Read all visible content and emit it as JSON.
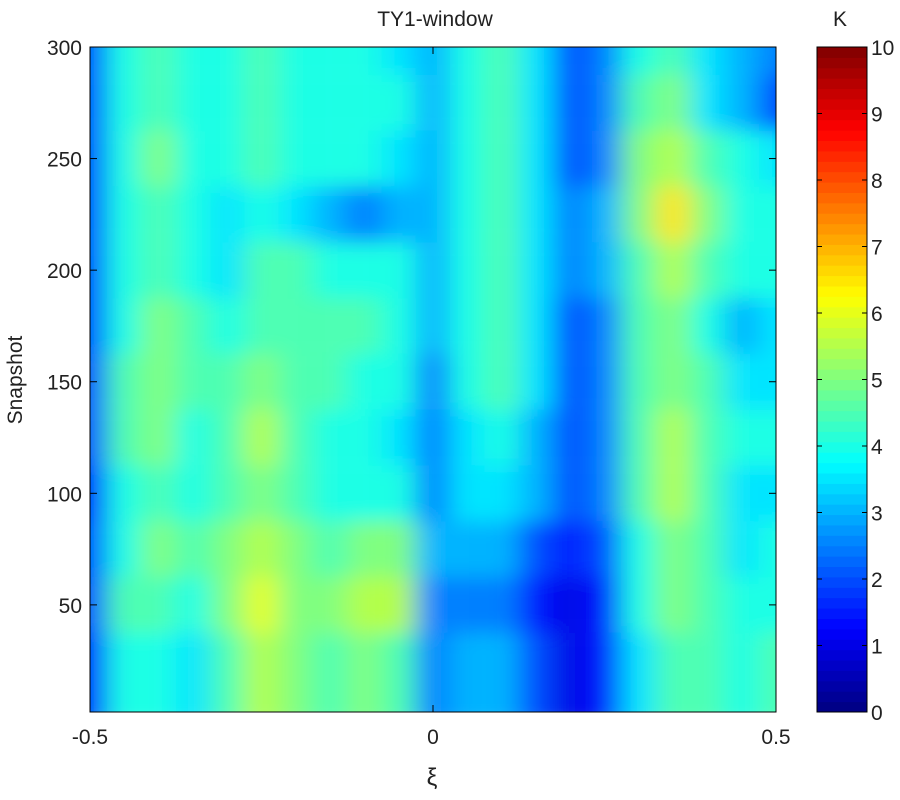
{
  "chart_data": {
    "type": "heatmap",
    "title": "TY1-window",
    "xlabel": "ξ",
    "ylabel": "Snapshot",
    "xlim": [
      -0.5,
      0.5
    ],
    "ylim": [
      2,
      300
    ],
    "xticks": [
      -0.5,
      0,
      0.5
    ],
    "xtick_labels": [
      "-0.5",
      "0",
      "0.5"
    ],
    "yticks": [
      50,
      100,
      150,
      200,
      250,
      300
    ],
    "ytick_labels": [
      "50",
      "100",
      "150",
      "200",
      "250",
      "300"
    ],
    "colorbar": {
      "label": "K",
      "range": [
        0,
        10
      ],
      "ticks": [
        0,
        1,
        2,
        3,
        4,
        5,
        6,
        7,
        8,
        9,
        10
      ],
      "tick_labels": [
        "0",
        "1",
        "2",
        "3",
        "4",
        "5",
        "6",
        "7",
        "8",
        "9",
        "10"
      ],
      "colormap": "jet"
    },
    "x": [
      -0.5,
      -0.45,
      -0.4,
      -0.35,
      -0.3,
      -0.25,
      -0.2,
      -0.15,
      -0.1,
      -0.05,
      0,
      0.05,
      0.1,
      0.15,
      0.2,
      0.25,
      0.3,
      0.35,
      0.4,
      0.45,
      0.5
    ],
    "y": [
      25,
      50,
      75,
      100,
      125,
      150,
      175,
      200,
      225,
      250,
      275,
      300
    ],
    "values": [
      [
        1.5,
        4,
        4,
        3.5,
        4.5,
        5.5,
        5,
        4.5,
        5,
        4.5,
        2.5,
        3,
        3,
        2,
        1,
        1.5,
        3.5,
        4.5,
        4.5,
        4,
        4.5
      ],
      [
        2,
        4.5,
        4.5,
        4,
        5,
        6,
        5,
        5,
        5.5,
        5.5,
        2.5,
        2.5,
        2.5,
        1.5,
        1,
        1.5,
        4,
        5,
        4.5,
        4,
        4
      ],
      [
        2,
        4,
        5,
        4.5,
        5,
        5.5,
        5,
        4.5,
        5,
        5,
        3,
        3,
        3,
        2,
        1.5,
        2,
        4,
        5,
        4.5,
        3.5,
        4
      ],
      [
        1.5,
        4,
        4.5,
        4,
        4.5,
        5,
        4.5,
        4,
        4,
        4,
        2.5,
        3.5,
        3.5,
        3,
        2,
        2.5,
        4.5,
        5.5,
        4.5,
        3.5,
        3.5
      ],
      [
        2,
        4.5,
        5,
        4,
        4.5,
        5.5,
        4.5,
        4,
        4,
        3.5,
        2.5,
        3.5,
        4,
        3,
        2,
        2.5,
        4.5,
        5.5,
        4.5,
        4,
        4
      ],
      [
        2,
        4.5,
        5,
        4.5,
        4.5,
        5,
        4.5,
        4.5,
        4,
        4,
        2.5,
        4,
        4.5,
        3.5,
        2,
        2.5,
        4.5,
        5,
        4.5,
        3.5,
        3.5
      ],
      [
        2,
        4,
        5,
        4.5,
        4,
        4.5,
        4.5,
        4.5,
        4.5,
        4,
        3,
        4,
        4.5,
        3.5,
        2,
        2.5,
        4.5,
        5,
        4,
        3,
        3.5
      ],
      [
        2,
        4,
        4.5,
        4,
        3.5,
        4.5,
        4.5,
        4,
        4,
        4,
        3,
        4,
        4.5,
        3.5,
        2.5,
        3,
        4.5,
        5.5,
        4.5,
        4,
        4
      ],
      [
        2,
        4,
        4.5,
        4,
        3.5,
        4,
        3.5,
        3,
        2.5,
        3,
        3,
        4,
        4.5,
        3.5,
        2.5,
        3,
        5,
        6.5,
        5,
        4,
        4
      ],
      [
        2,
        4,
        5,
        4,
        4,
        4.5,
        4,
        4,
        4,
        3.5,
        3,
        4,
        4.5,
        3.5,
        2,
        2.5,
        5,
        5.5,
        4.5,
        4,
        3.5
      ],
      [
        2,
        4,
        4.5,
        4,
        4,
        4.5,
        4,
        4,
        4,
        4,
        3,
        4,
        4.5,
        3.5,
        2,
        2.5,
        4.5,
        5,
        3.5,
        3,
        2
      ],
      [
        2,
        4,
        4.5,
        4,
        4,
        4.5,
        4,
        4,
        4,
        3.5,
        3,
        4,
        4.5,
        3.5,
        2,
        2.5,
        4,
        4.5,
        3.5,
        3,
        2.5
      ]
    ]
  }
}
